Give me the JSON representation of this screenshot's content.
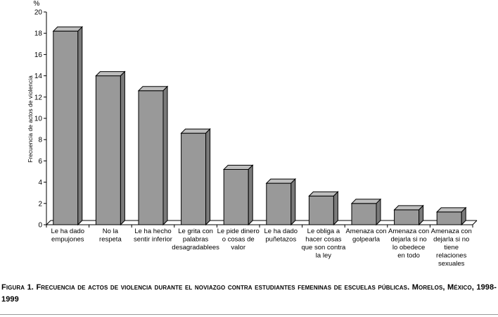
{
  "chart_data": {
    "type": "bar",
    "title": "",
    "unit_label": "%",
    "ylabel": "Frecuencia de actos de violencia",
    "xlabel": "",
    "ylim": [
      0,
      20
    ],
    "yticks": [
      0,
      2,
      4,
      6,
      8,
      10,
      12,
      14,
      16,
      18,
      20
    ],
    "grid": false,
    "categories": [
      [
        "Le  ha dado",
        "empujones"
      ],
      [
        "No la",
        "respeta"
      ],
      [
        "Le ha  hecho",
        "sentir inferior"
      ],
      [
        "Le grita con",
        "palabras",
        "desagradablees"
      ],
      [
        "Le pide dinero",
        "o cosas de",
        "valor"
      ],
      [
        "Le ha dado",
        "puñetazos"
      ],
      [
        "Le obliga a",
        "hacer cosas",
        "que son contra",
        "la ley"
      ],
      [
        "Amenaza con",
        "golpearla"
      ],
      [
        "Amenaza con",
        "dejarla si no",
        "lo obedece",
        "en todo"
      ],
      [
        "Amenaza con",
        "dejarla si no",
        "tiene",
        "relaciones",
        "sexuales"
      ]
    ],
    "values": [
      18.2,
      14.0,
      12.6,
      8.6,
      5.2,
      3.9,
      2.7,
      2.0,
      1.4,
      1.2
    ],
    "bar_color": "#999999",
    "bar_top_color": "#bdbdbd",
    "bar_side_color": "#7a7a7a"
  },
  "caption": {
    "text": "Figura 1. Frecuencia de actos de violencia durante el noviazgo contra estudiantes femeninas de escuelas públicas. Morelos, México, 1998-1999"
  }
}
